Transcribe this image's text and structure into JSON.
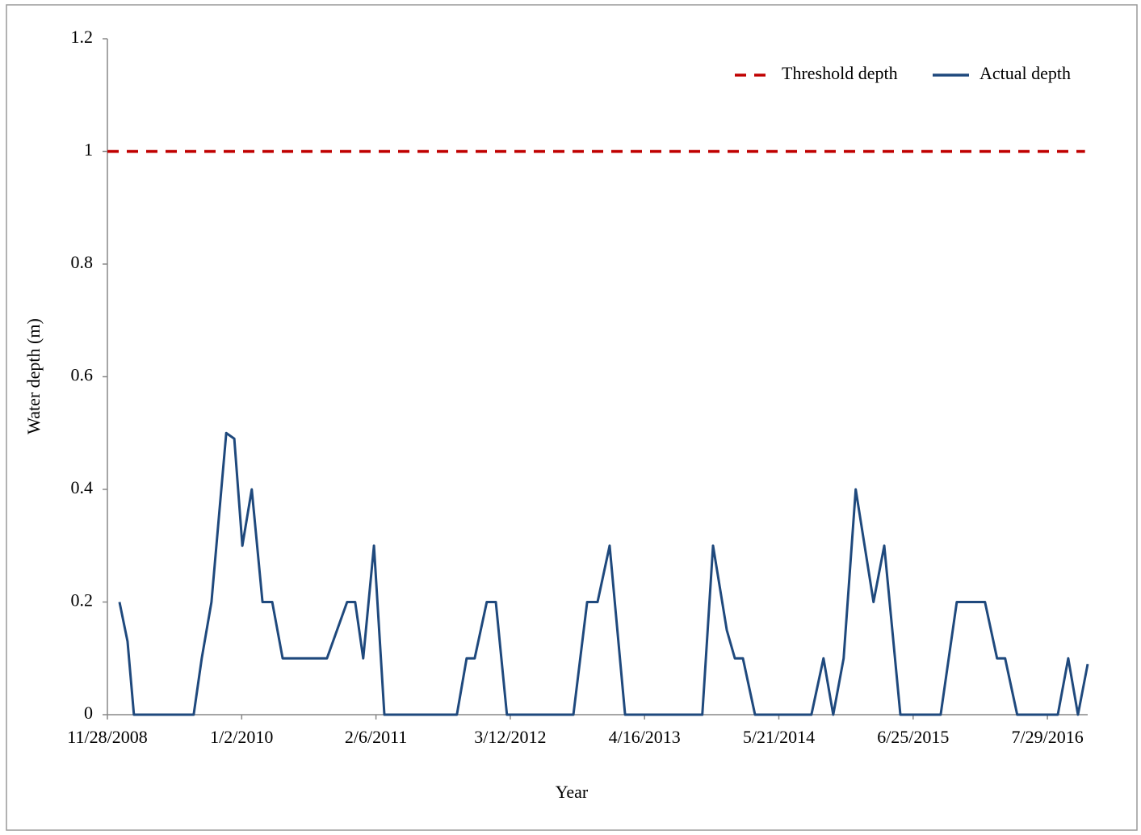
{
  "chart_data": {
    "type": "line",
    "x_label": "Year",
    "y_label": "Water depth (m)",
    "xlim": [
      "11/28/2008",
      "11/26/2016"
    ],
    "xticks": [
      "11/28/2008",
      "1/2/2010",
      "2/6/2011",
      "3/12/2012",
      "4/16/2013",
      "5/21/2014",
      "6/25/2015",
      "7/29/2016"
    ],
    "ylim": [
      0,
      1.2
    ],
    "yticks": [
      0,
      0.2,
      0.4,
      0.6,
      0.8,
      1,
      1.2
    ],
    "legend": "top-right",
    "series": [
      {
        "name": "Threshold depth",
        "color": "#c00000",
        "dashed": true,
        "x": [
          "11/28/2008",
          "11/18/2016"
        ],
        "values": [
          1,
          1
        ]
      },
      {
        "name": "Actual depth",
        "color": "#1f497d",
        "dashed": false,
        "x": [
          "1/3/2009",
          "1/27/2009",
          "2/15/2009",
          "5/8/2009",
          "8/12/2009",
          "9/5/2009",
          "10/4/2009",
          "11/17/2009",
          "12/11/2009",
          "1/4/2010",
          "2/1/2010",
          "3/5/2010",
          "4/3/2010",
          "5/4/2010",
          "6/9/2010",
          "9/13/2010",
          "11/12/2010",
          "12/6/2010",
          "12/30/2010",
          "1/31/2011",
          "3/3/2011",
          "10/5/2011",
          "11/3/2011",
          "11/27/2011",
          "1/2/2012",
          "1/29/2012",
          "3/2/2012",
          "9/16/2012",
          "10/27/2012",
          "11/27/2012",
          "1/2/2013",
          "2/17/2013",
          "10/5/2013",
          "11/6/2013",
          "12/17/2013",
          "1/10/2014",
          "2/3/2014",
          "3/11/2014",
          "8/26/2014",
          "10/1/2014",
          "10/30/2014",
          "11/30/2014",
          "1/5/2015",
          "2/27/2015",
          "3/31/2015",
          "5/18/2015",
          "9/15/2015",
          "11/2/2015",
          "1/25/2016",
          "3/1/2016",
          "3/25/2016",
          "4/30/2016",
          "8/29/2016",
          "9/29/2016",
          "10/28/2016",
          "11/26/2016"
        ],
        "values": [
          0.2,
          0.13,
          0,
          0,
          0,
          0.1,
          0.2,
          0.5,
          0.49,
          0.3,
          0.4,
          0.2,
          0.2,
          0.1,
          0.1,
          0.1,
          0.2,
          0.2,
          0.1,
          0.3,
          0,
          0,
          0.1,
          0.1,
          0.2,
          0.2,
          0,
          0,
          0.2,
          0.2,
          0.3,
          0,
          0,
          0.3,
          0.15,
          0.1,
          0.1,
          0,
          0,
          0.1,
          0,
          0.1,
          0.4,
          0.2,
          0.3,
          0,
          0,
          0.2,
          0.2,
          0.1,
          0.1,
          0,
          0,
          0.1,
          0,
          0.09
        ]
      }
    ]
  }
}
